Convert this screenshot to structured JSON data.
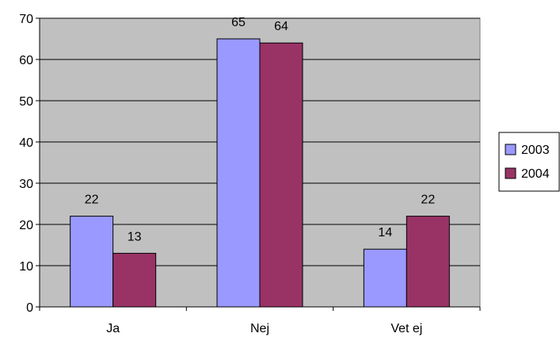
{
  "chart_data": {
    "type": "bar",
    "title": "",
    "xlabel": "",
    "ylabel": "",
    "categories": [
      "Ja",
      "Nej",
      "Vet ej"
    ],
    "series": [
      {
        "name": "2003",
        "values": [
          22,
          65,
          14
        ],
        "color": "#9999ff"
      },
      {
        "name": "2004",
        "values": [
          13,
          64,
          22
        ],
        "color": "#993366"
      }
    ],
    "ylim": [
      0,
      70
    ],
    "yticks": [
      0,
      10,
      20,
      30,
      40,
      50,
      60,
      70
    ],
    "grid": true,
    "data_labels": true,
    "legend_position": "right",
    "plot_background": "#c0c0c0"
  }
}
